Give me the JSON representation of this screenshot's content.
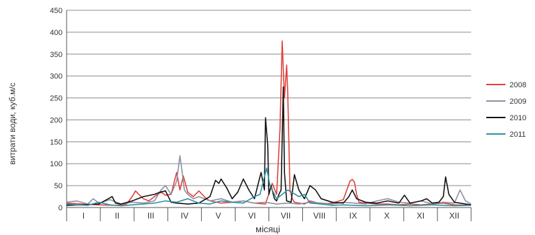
{
  "chart_data": {
    "type": "line",
    "title": "",
    "ylabel": "витрати води, куб.м/с",
    "xlabel": "місяці",
    "ylim": [
      0,
      450
    ],
    "yticks": [
      0,
      50,
      100,
      150,
      200,
      250,
      300,
      350,
      400,
      450
    ],
    "grid": true,
    "legend": "right",
    "categories": [
      "I",
      "II",
      "III",
      "IV",
      "V",
      "VI",
      "VII",
      "VIII",
      "IX",
      "X",
      "XI",
      "XII"
    ],
    "x_unit": "day of year (1–365)",
    "series": [
      {
        "name": "2008",
        "color": "#e0403a",
        "x": [
          1,
          15,
          30,
          45,
          55,
          60,
          63,
          66,
          70,
          75,
          80,
          86,
          90,
          95,
          100,
          103,
          106,
          110,
          115,
          120,
          126,
          130,
          140,
          150,
          160,
          170,
          180,
          186,
          190,
          193,
          195,
          197,
          199,
          200,
          202,
          204,
          206,
          210,
          215,
          220,
          230,
          240,
          250,
          256,
          258,
          260,
          262,
          264,
          270,
          280,
          290,
          300,
          310,
          320,
          330,
          340,
          350,
          365
        ],
        "y": [
          10,
          8,
          6,
          5,
          8,
          25,
          38,
          30,
          20,
          15,
          25,
          35,
          28,
          30,
          80,
          40,
          72,
          35,
          25,
          38,
          22,
          15,
          10,
          12,
          15,
          10,
          8,
          55,
          30,
          180,
          380,
          250,
          325,
          260,
          40,
          20,
          12,
          10,
          8,
          15,
          8,
          10,
          18,
          60,
          64,
          58,
          30,
          12,
          10,
          8,
          8,
          6,
          8,
          6,
          8,
          10,
          6,
          5
        ]
      },
      {
        "name": "2009",
        "color": "#8b8fa3",
        "x": [
          1,
          10,
          20,
          25,
          30,
          40,
          50,
          60,
          70,
          80,
          86,
          90,
          95,
          100,
          103,
          105,
          107,
          110,
          115,
          120,
          130,
          140,
          150,
          160,
          170,
          180,
          190,
          200,
          210,
          220,
          230,
          240,
          250,
          260,
          270,
          280,
          290,
          300,
          310,
          320,
          330,
          340,
          350,
          355,
          360,
          365
        ],
        "y": [
          12,
          15,
          8,
          20,
          10,
          18,
          8,
          12,
          10,
          15,
          40,
          50,
          30,
          60,
          118,
          80,
          40,
          30,
          20,
          25,
          15,
          20,
          12,
          15,
          10,
          12,
          8,
          10,
          8,
          12,
          10,
          8,
          12,
          10,
          8,
          15,
          20,
          12,
          10,
          15,
          8,
          12,
          10,
          40,
          15,
          8
        ]
      },
      {
        "name": "2010",
        "color": "#111111",
        "x": [
          1,
          15,
          30,
          42,
          45,
          50,
          60,
          70,
          80,
          85,
          90,
          95,
          100,
          110,
          120,
          130,
          135,
          138,
          140,
          145,
          150,
          155,
          160,
          165,
          170,
          174,
          176,
          179,
          180,
          182,
          183,
          185,
          188,
          190,
          192,
          194,
          196,
          197,
          199,
          203,
          206,
          210,
          215,
          220,
          225,
          230,
          240,
          250,
          255,
          258,
          262,
          270,
          280,
          290,
          300,
          305,
          310,
          320,
          325,
          330,
          336,
          340,
          342,
          345,
          350,
          360,
          365
        ],
        "y": [
          5,
          6,
          8,
          25,
          10,
          8,
          15,
          25,
          30,
          35,
          38,
          12,
          10,
          8,
          10,
          25,
          62,
          55,
          65,
          45,
          20,
          35,
          65,
          40,
          20,
          60,
          80,
          40,
          205,
          140,
          30,
          50,
          20,
          15,
          30,
          40,
          275,
          80,
          15,
          12,
          75,
          40,
          20,
          50,
          40,
          20,
          12,
          10,
          25,
          40,
          20,
          12,
          10,
          15,
          10,
          28,
          10,
          15,
          20,
          10,
          12,
          25,
          70,
          30,
          12,
          8,
          6
        ]
      },
      {
        "name": "2011",
        "color": "#2f8fa3",
        "x": [
          1,
          10,
          20,
          30,
          40,
          50,
          60,
          70,
          80,
          90,
          100,
          110,
          120,
          130,
          140,
          150,
          160,
          170,
          175,
          178,
          181,
          184,
          190,
          200,
          210,
          215,
          220,
          230,
          240,
          250,
          260,
          270,
          280,
          290,
          300,
          310,
          320,
          330,
          340,
          350,
          365
        ],
        "y": [
          8,
          6,
          5,
          12,
          6,
          4,
          6,
          8,
          10,
          15,
          12,
          20,
          10,
          8,
          15,
          12,
          10,
          25,
          30,
          60,
          90,
          50,
          20,
          40,
          25,
          30,
          10,
          8,
          5,
          6,
          5,
          4,
          5,
          6,
          5,
          4,
          5,
          6,
          5,
          4,
          5
        ]
      }
    ]
  }
}
